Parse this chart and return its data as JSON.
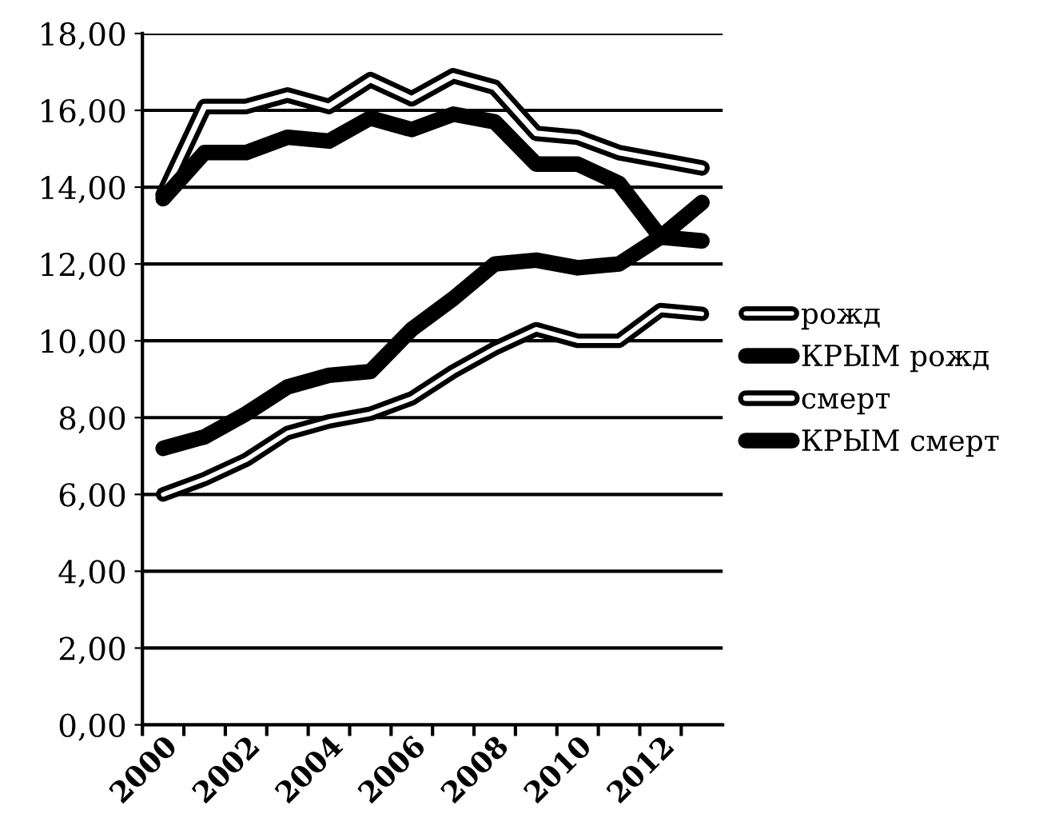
{
  "chart_data": {
    "type": "line",
    "categories": [
      "2000",
      null,
      "2002",
      null,
      "2004",
      null,
      "2006",
      null,
      "2008",
      null,
      "2010",
      null,
      "2012",
      null
    ],
    "series": [
      {
        "name": "рожд",
        "color": "#000000",
        "values": [
          6.0,
          6.4,
          6.9,
          7.6,
          7.9,
          8.1,
          8.5,
          9.2,
          9.8,
          10.3,
          10.0,
          10.0,
          10.8,
          10.7
        ]
      },
      {
        "name": "КРЫМ рожд",
        "color": "#000000",
        "values": [
          7.2,
          7.5,
          8.1,
          8.8,
          9.1,
          9.2,
          10.3,
          11.1,
          12.0,
          12.1,
          11.9,
          12.0,
          12.7,
          13.6
        ]
      },
      {
        "name": "смерт",
        "color": "#000000",
        "values": [
          13.8,
          16.1,
          16.1,
          16.4,
          16.1,
          16.8,
          16.3,
          16.9,
          16.6,
          15.4,
          15.3,
          14.9,
          14.7,
          14.5
        ]
      },
      {
        "name": "КРЫМ смерт",
        "color": "#000000",
        "values": [
          13.7,
          14.9,
          14.9,
          15.3,
          15.2,
          15.8,
          15.5,
          15.9,
          15.7,
          14.6,
          14.6,
          14.1,
          12.7,
          12.6
        ]
      }
    ],
    "ylim": [
      0,
      18
    ],
    "yticks": [
      {
        "value": 0,
        "label": "0,00"
      },
      {
        "value": 2,
        "label": "2,00"
      },
      {
        "value": 4,
        "label": "4,00"
      },
      {
        "value": 6,
        "label": "6,00"
      },
      {
        "value": 8,
        "label": "8,00"
      },
      {
        "value": 10,
        "label": "10,00"
      },
      {
        "value": 12,
        "label": "12,00"
      },
      {
        "value": 14,
        "label": "14,00"
      },
      {
        "value": 16,
        "label": "16,00"
      },
      {
        "value": 18,
        "label": "18,00"
      }
    ],
    "grid": "y",
    "legend": "right",
    "marker": "none",
    "line_style": "solid"
  }
}
